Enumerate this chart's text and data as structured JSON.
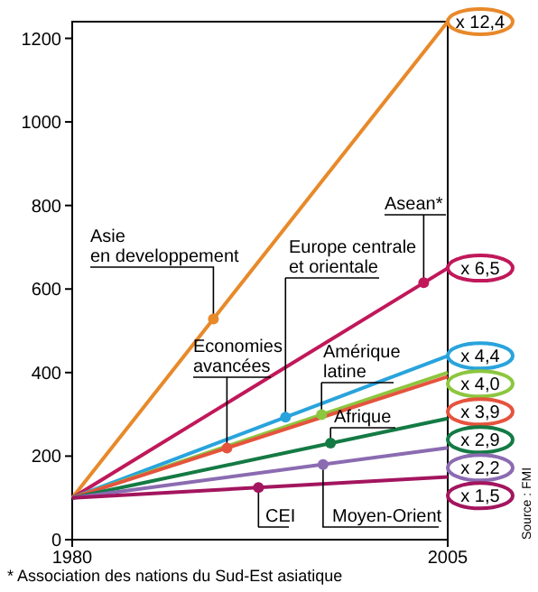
{
  "chart_data": {
    "type": "line",
    "x": [
      1980,
      2005
    ],
    "xlim": [
      1980,
      2005
    ],
    "xticks": [
      1980,
      2005
    ],
    "ylim": [
      0,
      1240
    ],
    "yticks": [
      0,
      200,
      400,
      600,
      800,
      1000,
      1200
    ],
    "grid": false,
    "series": [
      {
        "color": "#e8892a",
        "values": [
          100,
          1240
        ],
        "value_labels": [
          null,
          "x 12,4"
        ]
      },
      {
        "color": "#c0185a",
        "values": [
          100,
          650
        ],
        "value_labels": [
          null,
          "x 6,5"
        ]
      },
      {
        "color": "#29a3dc",
        "values": [
          100,
          440
        ],
        "value_labels": [
          null,
          "x 4,4"
        ]
      },
      {
        "color": "#8dc63f",
        "values": [
          100,
          400
        ],
        "value_labels": [
          null,
          "x 4,0"
        ]
      },
      {
        "color": "#e5533d",
        "values": [
          100,
          390
        ],
        "value_labels": [
          null,
          "x 3,9"
        ]
      },
      {
        "color": "#147a44",
        "values": [
          100,
          290
        ],
        "value_labels": [
          null,
          "x 2,9"
        ]
      },
      {
        "color": "#8b6bb1",
        "values": [
          100,
          220
        ],
        "value_labels": [
          null,
          "x 2,2"
        ]
      },
      {
        "color": "#a3155e",
        "values": [
          100,
          150
        ],
        "value_labels": [
          null,
          "x 1,5"
        ]
      }
    ],
    "annotations": [
      {
        "text": "Asie\nen developpement",
        "x": 1989.4,
        "y": 528
      },
      {
        "text": "Economies\navancées",
        "x": 1990.3,
        "y": 219
      },
      {
        "text": "Europe centrale\net orientale",
        "x": 1994.2,
        "y": 293
      },
      {
        "text": "Amérique\nlatine",
        "x": 1996.6,
        "y": 299
      },
      {
        "text": "Afrique",
        "x": 1997.2,
        "y": 231
      },
      {
        "text": "Moyen-Orient",
        "x": 1996.7,
        "y": 180
      },
      {
        "text": "CEI",
        "x": 1992.4,
        "y": 125
      },
      {
        "text": "Asean*",
        "x": 2003.4,
        "y": 615
      },
      "* Association des nations du Sud-Est asiatique",
      "Source : FMI"
    ]
  }
}
